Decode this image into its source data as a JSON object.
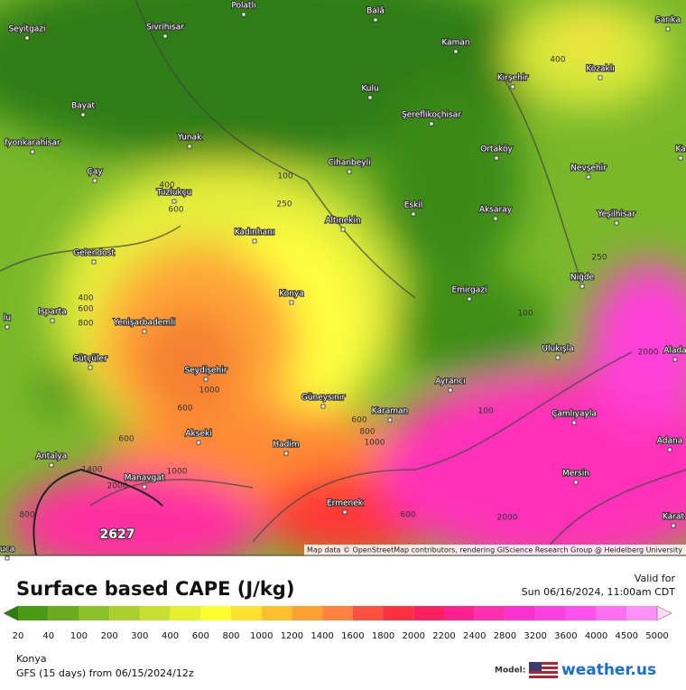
{
  "map": {
    "cities": [
      "Polatlı",
      "Balâ",
      "Sarıka",
      "Seyitgazi",
      "Sivrihisar",
      "Kaman",
      "Kırşehir",
      "Kozaklı",
      "Kulu",
      "Bayat",
      "Şereflikoçhisar",
      "fyonkarahisar",
      "Yunak",
      "Ortaköy",
      "Ka",
      "Cihanbeyli",
      "Nevşehir",
      "Çay",
      "Tuzlukçu",
      "Eskil",
      "Aksaray",
      "Yeşilhisar",
      "Altınekin",
      "Kadınhanı",
      "Gelendost",
      "Niğde",
      "Emirgazi",
      "Konya",
      "lu",
      "Isparta",
      "Yenişarbademli",
      "Ulukışla",
      "Alada",
      "Sütçüler",
      "Seydişehir",
      "Ayrancı",
      "Güneysınır",
      "Karaman",
      "Çamlıyayla",
      "Akseki",
      "Hadim",
      "Adana",
      "Antalya",
      "Manavgat",
      "Mersin",
      "Ermenek",
      "Karat",
      "uca"
    ],
    "contour_labels": [
      400,
      100,
      250,
      400,
      600,
      250,
      400,
      600,
      800,
      100,
      2000,
      1000,
      600,
      100,
      600,
      800,
      1000,
      600,
      1400,
      1000,
      2000,
      800,
      600,
      2000
    ],
    "peak_label": 2627,
    "attribution": "Map data © OpenStreetMap contributors, rendering GIScience Research Group @ Heidelberg University"
  },
  "legend": {
    "title": "Surface based CAPE (J/kg)",
    "ticks": [
      20,
      40,
      100,
      200,
      300,
      400,
      600,
      800,
      1000,
      1200,
      1400,
      1600,
      1800,
      2000,
      2200,
      2400,
      2800,
      3200,
      3600,
      4000,
      4500,
      5000
    ]
  },
  "header": {
    "valid_label": "Valid for",
    "valid_time": "Sun 06/16/2024, 11:00am CDT"
  },
  "footer": {
    "location": "Konya",
    "model_run": "GFS (15 days) from 06/15/2024/12z",
    "model_label": "Model:",
    "brand": "weather.us"
  }
}
